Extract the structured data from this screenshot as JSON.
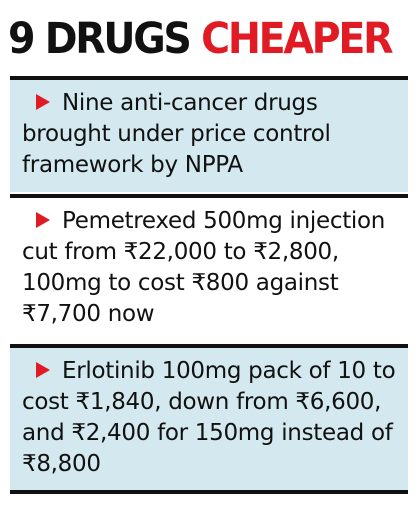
{
  "headline": {
    "number": "9",
    "dark_word": "DRUGS",
    "accent_word": "CHEAPER"
  },
  "colors": {
    "accent": "#e01b24",
    "panel_tint": "#d3e9ef",
    "text": "#111111"
  },
  "bullets": [
    {
      "icon": "red-arrow-icon",
      "text": "Nine anti-cancer drugs brought under price control framework by NPPA"
    },
    {
      "icon": "red-arrow-icon",
      "text": "Pemetrexed 500mg injection cut from ₹22,000 to ₹2,800, 100mg  to cost ₹800 against ₹7,700 now"
    },
    {
      "icon": "red-arrow-icon",
      "text": "Erlotinib 100mg pack of 10 to cost ₹1,840, down from ₹6,600, and ₹2,400 for 150mg instead of ₹8,800"
    }
  ]
}
